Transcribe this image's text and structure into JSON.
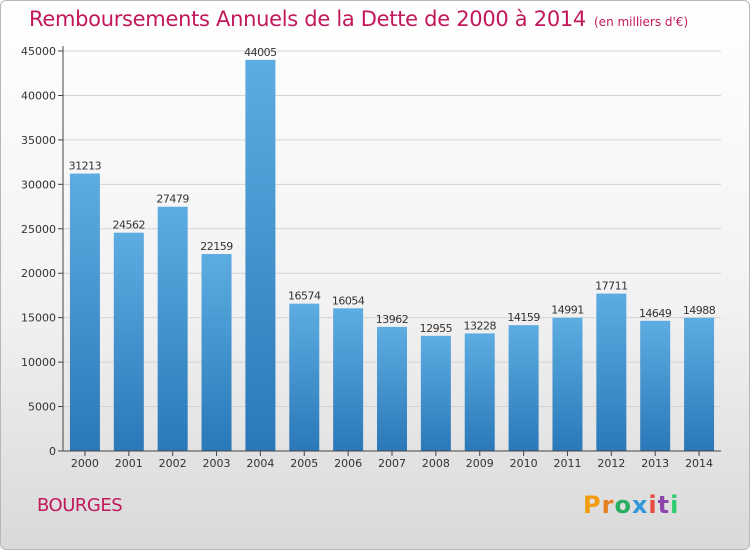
{
  "title": "Remboursements Annuels de la Dette de 2000 à 2014",
  "subtitle": "(en milliers d'€)",
  "footer": {
    "city": "BOURGES",
    "logo_text": "Proxiti"
  },
  "colors": {
    "title": "#c2185b",
    "bar_top": "#5dade2",
    "bar_bottom": "#2a78b8",
    "logo_letters": [
      "#f39c12",
      "#e67e22",
      "#27ae60",
      "#3498db",
      "#e74c3c",
      "#8e44ad",
      "#2ecc71"
    ]
  },
  "chart_data": {
    "type": "bar",
    "title": "Remboursements Annuels de la Dette de 2000 à 2014",
    "subtitle": "(en milliers d'€)",
    "xlabel": "",
    "ylabel": "",
    "categories": [
      "2000",
      "2001",
      "2002",
      "2003",
      "2004",
      "2005",
      "2006",
      "2007",
      "2008",
      "2009",
      "2010",
      "2011",
      "2012",
      "2013",
      "2014"
    ],
    "values": [
      31213,
      24562,
      27479,
      22159,
      44005,
      16574,
      16054,
      13962,
      12955,
      13228,
      14159,
      14991,
      17711,
      14649,
      14988
    ],
    "ylim": [
      0,
      45000
    ],
    "yticks": [
      0,
      5000,
      10000,
      15000,
      20000,
      25000,
      30000,
      35000,
      40000,
      45000
    ],
    "grid": true,
    "legend": "none",
    "data_labels": true
  }
}
